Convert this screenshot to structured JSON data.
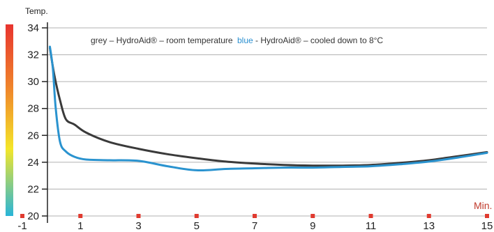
{
  "chart_data": {
    "type": "line",
    "ylabel": "Temp.",
    "xlabel": "Min.",
    "ylim": [
      20,
      34
    ],
    "xlim": [
      -1,
      15
    ],
    "yticks": [
      "20",
      "22",
      "24",
      "26",
      "28",
      "30",
      "32",
      "34"
    ],
    "xticks": [
      "-1",
      "1",
      "3",
      "5",
      "7",
      "9",
      "11",
      "13",
      "15"
    ],
    "legend_grey_prefix": "grey",
    "legend_grey_text": " – HydroAid® – room temperature",
    "legend_blue_prefix": "blue",
    "legend_blue_text": " - HydroAid® – cooled down to 8°C",
    "colors": {
      "grey": "#3a3a3a",
      "blue": "#2a93cf",
      "marker": "#e03a2f"
    },
    "series": [
      {
        "name": "grey",
        "x": [
          -0.05,
          0.1,
          0.3,
          0.5,
          0.8,
          1.2,
          2,
          3,
          4,
          5,
          6,
          7,
          8,
          9,
          10,
          11,
          12,
          13,
          14,
          15
        ],
        "y": [
          32.5,
          30.5,
          28.6,
          27.2,
          26.8,
          26.2,
          25.5,
          25.0,
          24.6,
          24.3,
          24.05,
          23.9,
          23.8,
          23.75,
          23.75,
          23.8,
          23.95,
          24.15,
          24.45,
          24.75
        ]
      },
      {
        "name": "blue",
        "x": [
          -0.05,
          0.05,
          0.15,
          0.3,
          0.5,
          0.8,
          1.2,
          2,
          3,
          4,
          5,
          6,
          7,
          8,
          9,
          10,
          11,
          12,
          13,
          14,
          15
        ],
        "y": [
          32.6,
          31.0,
          28.0,
          25.5,
          24.8,
          24.4,
          24.2,
          24.15,
          24.1,
          23.7,
          23.4,
          23.5,
          23.55,
          23.6,
          23.6,
          23.65,
          23.7,
          23.85,
          24.05,
          24.35,
          24.7
        ]
      }
    ]
  }
}
